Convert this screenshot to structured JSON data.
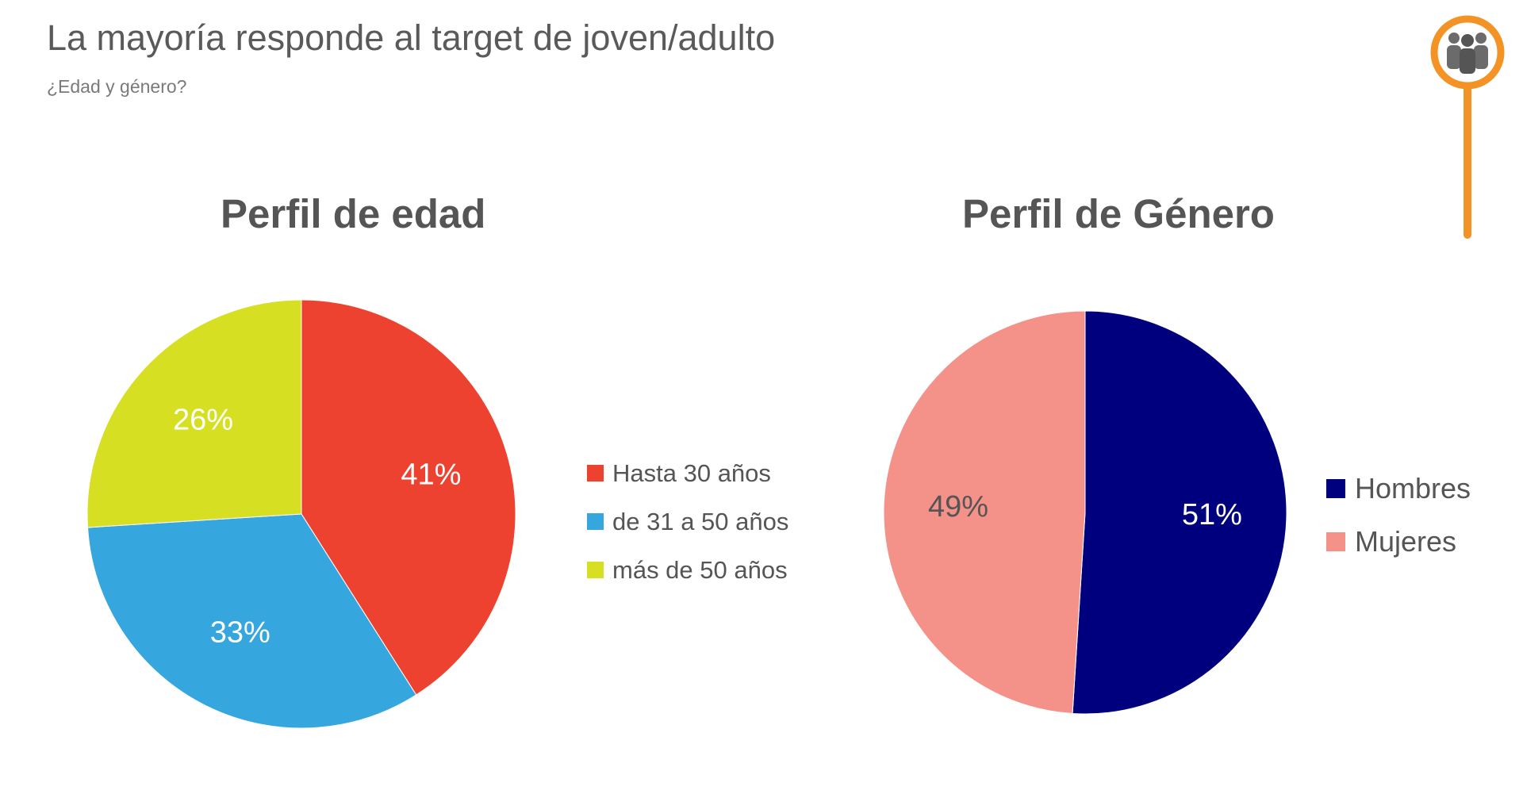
{
  "header": {
    "title": "La mayoría responde al target de joven/adulto",
    "subtitle": "¿Edad y género?"
  },
  "logo": {
    "icon": "people-group-icon",
    "color": "#f39325"
  },
  "chart_data": [
    {
      "type": "pie",
      "title": "Perfil de edad",
      "categories": [
        "Hasta 30 años",
        "de 31 a 50 años",
        "más de 50 años"
      ],
      "values": [
        41,
        33,
        26
      ],
      "labels": [
        "41%",
        "33%",
        "26%"
      ],
      "colors": [
        "#ee4231",
        "#35a6de",
        "#d7df23"
      ],
      "label_colors": [
        "#ffffff",
        "#ffffff",
        "#ffffff"
      ],
      "start": "12 o'clock",
      "direction": "clockwise",
      "legend": "right"
    },
    {
      "type": "pie",
      "title": "Perfil de Género",
      "categories": [
        "Hombres",
        "Mujeres"
      ],
      "values": [
        51,
        49
      ],
      "labels": [
        "51%",
        "49%"
      ],
      "colors": [
        "#00007f",
        "#f4928a"
      ],
      "label_colors": [
        "#ffffff",
        "#555555"
      ],
      "start": "12 o'clock",
      "direction": "clockwise",
      "legend": "right"
    }
  ]
}
